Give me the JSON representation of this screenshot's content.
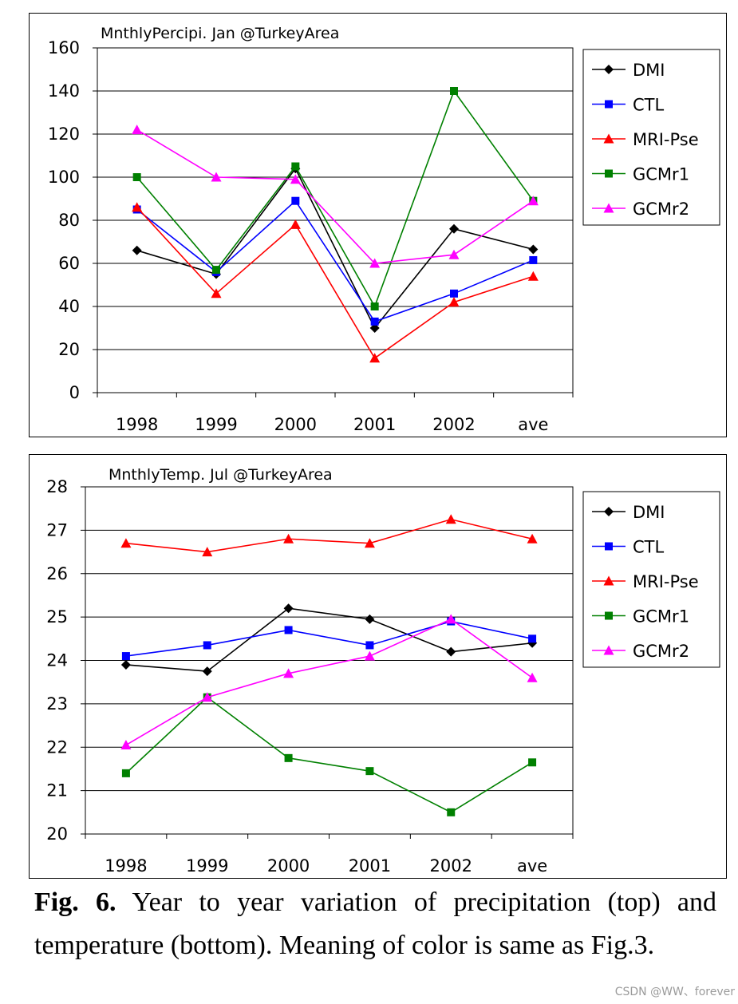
{
  "chart_data": [
    {
      "type": "line",
      "title": "MnthlyPercipi. Jan @TurkeyArea",
      "categories": [
        "1998",
        "1999",
        "2000",
        "2001",
        "2002",
        "ave"
      ],
      "ylim": [
        0,
        160
      ],
      "yticks": [
        0,
        20,
        40,
        60,
        80,
        100,
        120,
        140,
        160
      ],
      "grid": true,
      "legend_position": "top-right",
      "series": [
        {
          "name": "DMI",
          "color": "#000000",
          "marker": "diamond",
          "values": [
            66,
            55,
            104,
            30,
            76,
            66.5
          ]
        },
        {
          "name": "CTL",
          "color": "#0000ff",
          "marker": "square",
          "values": [
            85,
            56,
            89,
            33,
            46,
            61.5
          ]
        },
        {
          "name": "MRI-Pse",
          "color": "#ff0000",
          "marker": "triangle",
          "values": [
            86,
            46,
            78,
            16,
            42,
            54
          ]
        },
        {
          "name": "GCMr1",
          "color": "#008000",
          "marker": "square",
          "values": [
            100,
            57,
            105,
            40,
            140,
            89
          ]
        },
        {
          "name": "GCMr2",
          "color": "#ff00ff",
          "marker": "triangle",
          "values": [
            122,
            100,
            99,
            60,
            64,
            89
          ]
        }
      ]
    },
    {
      "type": "line",
      "title": "MnthlyTemp. Jul @TurkeyArea",
      "categories": [
        "1998",
        "1999",
        "2000",
        "2001",
        "2002",
        "ave"
      ],
      "ylim": [
        20,
        28
      ],
      "yticks": [
        20,
        21,
        22,
        23,
        24,
        25,
        26,
        27,
        28
      ],
      "grid": true,
      "legend_position": "top-right",
      "series": [
        {
          "name": "DMI",
          "color": "#000000",
          "marker": "diamond",
          "values": [
            23.9,
            23.75,
            25.2,
            24.95,
            24.2,
            24.4
          ]
        },
        {
          "name": "CTL",
          "color": "#0000ff",
          "marker": "square",
          "values": [
            24.1,
            24.35,
            24.7,
            24.35,
            24.9,
            24.5
          ]
        },
        {
          "name": "MRI-Pse",
          "color": "#ff0000",
          "marker": "triangle",
          "values": [
            26.7,
            26.5,
            26.8,
            26.7,
            27.25,
            26.8
          ]
        },
        {
          "name": "GCMr1",
          "color": "#008000",
          "marker": "square",
          "values": [
            21.4,
            23.15,
            21.75,
            21.45,
            20.5,
            21.65
          ]
        },
        {
          "name": "GCMr2",
          "color": "#ff00ff",
          "marker": "triangle",
          "values": [
            22.05,
            23.15,
            23.7,
            24.1,
            24.95,
            23.6
          ]
        }
      ]
    }
  ],
  "caption": {
    "label": "Fig. 6.",
    "text": " Year to year variation of precipitation (top) and temperature (bottom). Meaning of  color is same as Fig.3."
  },
  "watermark": "CSDN @WW、forever"
}
